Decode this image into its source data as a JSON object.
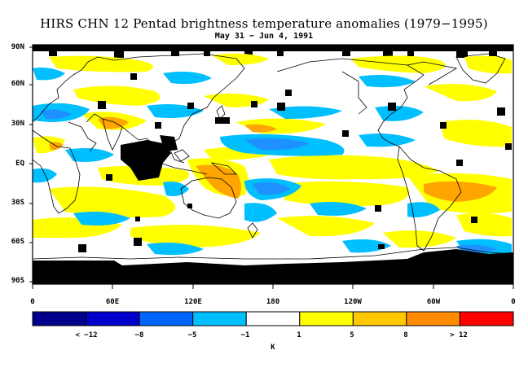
{
  "title": "HIRS CHN 12 Pentad brightness temperature anomalies (1979−1995)",
  "subtitle": "May 31 − Jun 4, 1991",
  "lat_labels": [
    "90N",
    "60N",
    "30N",
    "EQ",
    "30S",
    "60S",
    "90S"
  ],
  "lon_labels": [
    "0",
    "60E",
    "120E",
    "180",
    "120W",
    "60W",
    "0"
  ],
  "colorbar": {
    "colors": [
      "#00008B",
      "#0000CD",
      "#0064FF",
      "#00BFFF",
      "#FFFFFF",
      "#FFFF00",
      "#FFC800",
      "#FF8C00",
      "#FF0000"
    ],
    "labels": [
      "< −12",
      "−8",
      "−5",
      "−1",
      "1",
      "5",
      "8",
      "> 12"
    ],
    "unit": "K"
  },
  "colors": {
    "positive_weak": "#FFFF00",
    "positive_mid": "#FFA500",
    "negative_weak": "#00BFFF",
    "negative_mid": "#1E90FF",
    "missing": "#000000",
    "coast": "#000000"
  }
}
